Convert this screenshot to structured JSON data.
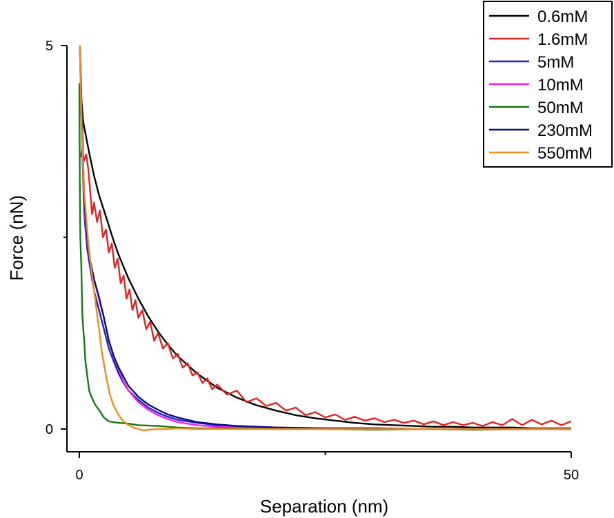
{
  "chart_data": {
    "type": "line",
    "title": "",
    "xlabel": "Separation (nm)",
    "ylabel": "Force (nN)",
    "xlim": [
      -0.5,
      50
    ],
    "ylim": [
      -0.3,
      5
    ],
    "x_ticks": [
      0,
      50
    ],
    "x_minor_ticks": [
      25
    ],
    "y_ticks": [
      0,
      5
    ],
    "y_minor_ticks": [
      2.5
    ],
    "grid": false,
    "legend_position": "top-right",
    "series": [
      {
        "name": "0.6mM",
        "color": "#000000",
        "x": [
          0.05,
          0.2,
          0.4,
          0.7,
          1,
          1.5,
          2,
          2.5,
          3,
          3.5,
          4,
          5,
          6,
          7,
          8,
          9,
          10,
          12,
          14,
          16,
          18,
          20,
          22,
          24,
          26,
          28,
          30,
          32,
          34,
          36,
          38,
          40,
          42,
          44,
          46,
          48,
          50
        ],
        "values": [
          5,
          4.3,
          4.0,
          3.8,
          3.6,
          3.3,
          3.05,
          2.85,
          2.65,
          2.45,
          2.27,
          1.96,
          1.7,
          1.47,
          1.27,
          1.1,
          0.95,
          0.72,
          0.54,
          0.41,
          0.31,
          0.24,
          0.18,
          0.14,
          0.11,
          0.08,
          0.06,
          0.05,
          0.04,
          0.03,
          0.03,
          0.02,
          0.02,
          0.02,
          0.01,
          0.01,
          0.01
        ]
      },
      {
        "name": "1.6mM",
        "color": "#e32222",
        "x": [
          0.05,
          0.15,
          0.3,
          0.5,
          0.7,
          0.9,
          1.1,
          1.3,
          1.5,
          1.8,
          2.1,
          2.4,
          2.7,
          3,
          3.3,
          3.6,
          3.9,
          4.2,
          4.5,
          4.8,
          5.1,
          5.4,
          5.7,
          6,
          6.4,
          6.8,
          7.2,
          7.6,
          8,
          8.5,
          9,
          9.5,
          10,
          10.5,
          11,
          11.5,
          12,
          12.5,
          13,
          13.5,
          14,
          15,
          16,
          17,
          18,
          19,
          20,
          21,
          22,
          23,
          24,
          25,
          26,
          27,
          28,
          29,
          30,
          31,
          32,
          33,
          34,
          35,
          36,
          37,
          38,
          39,
          40,
          41,
          42,
          43,
          44,
          45,
          46,
          47,
          48,
          49,
          50
        ],
        "values": [
          3.6,
          3.55,
          3.65,
          3.5,
          3.58,
          3.4,
          3.1,
          2.8,
          2.95,
          2.7,
          2.85,
          2.5,
          2.6,
          2.3,
          2.42,
          2.1,
          2.22,
          1.9,
          2.0,
          1.7,
          1.82,
          1.55,
          1.68,
          1.45,
          1.55,
          1.3,
          1.4,
          1.15,
          1.25,
          1.05,
          1.12,
          0.92,
          0.98,
          0.8,
          0.86,
          0.7,
          0.74,
          0.6,
          0.66,
          0.52,
          0.58,
          0.45,
          0.5,
          0.35,
          0.4,
          0.3,
          0.34,
          0.24,
          0.28,
          0.18,
          0.22,
          0.15,
          0.19,
          0.12,
          0.16,
          0.11,
          0.14,
          0.09,
          0.12,
          0.08,
          0.11,
          0.06,
          0.1,
          0.05,
          0.09,
          0.05,
          0.08,
          0.04,
          0.09,
          0.05,
          0.13,
          0.05,
          0.12,
          0.06,
          0.11,
          0.05,
          0.1
        ]
      },
      {
        "name": "5mM",
        "color": "#1f1fd0",
        "x": [
          0.05,
          0.15,
          0.3,
          0.5,
          0.8,
          1.1,
          1.5,
          2,
          2.5,
          3,
          3.5,
          4,
          4.5,
          5,
          6,
          7,
          8,
          9,
          10,
          12,
          14,
          16,
          18,
          20,
          25,
          30,
          35,
          40,
          45,
          50
        ],
        "values": [
          5,
          4.4,
          3.6,
          2.8,
          2.35,
          2.1,
          1.8,
          1.55,
          1.3,
          1.05,
          0.88,
          0.72,
          0.6,
          0.5,
          0.38,
          0.28,
          0.21,
          0.16,
          0.12,
          0.08,
          0.05,
          0.04,
          0.03,
          0.02,
          0.01,
          0.01,
          0.0,
          0.0,
          0.0,
          0.0
        ]
      },
      {
        "name": "10mM",
        "color": "#ee22ee",
        "x": [
          0.05,
          0.15,
          0.3,
          0.5,
          0.8,
          1.1,
          1.5,
          2,
          2.5,
          3,
          3.5,
          4,
          4.5,
          5,
          6,
          7,
          8,
          9,
          10,
          12,
          14,
          16,
          18,
          20,
          25,
          30,
          35,
          40,
          45,
          50
        ],
        "values": [
          5,
          4.5,
          3.7,
          2.9,
          2.45,
          2.2,
          1.95,
          1.7,
          1.45,
          1.15,
          0.95,
          0.78,
          0.62,
          0.5,
          0.35,
          0.25,
          0.18,
          0.13,
          0.09,
          0.05,
          0.03,
          0.02,
          0.01,
          0.01,
          0.0,
          0.0,
          0.0,
          0.0,
          0.0,
          0.0
        ]
      },
      {
        "name": "50mM",
        "color": "#157a15",
        "x": [
          0.0,
          0.05,
          0.1,
          0.2,
          0.3,
          0.4,
          0.5,
          0.6,
          0.8,
          1.0,
          1.3,
          1.6,
          2.0,
          2.5,
          3,
          4,
          5,
          6,
          8,
          10,
          12,
          15,
          20,
          25,
          30,
          35,
          40,
          45,
          50
        ],
        "values": [
          4.5,
          3.2,
          2.5,
          2.1,
          1.5,
          1.3,
          1.15,
          0.9,
          0.7,
          0.5,
          0.4,
          0.32,
          0.25,
          0.15,
          0.1,
          0.08,
          0.07,
          0.05,
          0.04,
          0.02,
          0.01,
          0.01,
          0.0,
          0.0,
          -0.01,
          0.0,
          -0.01,
          0.0,
          0.0
        ]
      },
      {
        "name": "230mM",
        "color": "#0a0a7a",
        "x": [
          0.05,
          0.15,
          0.3,
          0.5,
          0.8,
          1.1,
          1.5,
          2,
          2.5,
          3,
          3.5,
          4,
          4.5,
          5,
          6,
          7,
          8,
          9,
          10,
          12,
          14,
          16,
          18,
          20,
          25,
          30,
          35,
          40,
          45,
          50
        ],
        "values": [
          5,
          4.6,
          3.9,
          3.0,
          2.5,
          2.2,
          1.95,
          1.72,
          1.45,
          1.15,
          0.95,
          0.8,
          0.68,
          0.56,
          0.42,
          0.32,
          0.25,
          0.19,
          0.15,
          0.09,
          0.06,
          0.04,
          0.03,
          0.02,
          0.01,
          0.01,
          0.0,
          0.0,
          0.0,
          0.0
        ]
      },
      {
        "name": "550mM",
        "color": "#f08c1e",
        "x": [
          0.05,
          0.15,
          0.3,
          0.5,
          0.7,
          0.9,
          1.1,
          1.4,
          1.7,
          2.0,
          2.3,
          2.7,
          3.1,
          3.5,
          4,
          4.5,
          5,
          5.5,
          6,
          6.5,
          7,
          8,
          9,
          10,
          12,
          15,
          20,
          25,
          30,
          35,
          40,
          45,
          50
        ],
        "values": [
          5,
          4.4,
          3.7,
          3.1,
          2.75,
          2.45,
          2.2,
          1.9,
          1.6,
          1.3,
          1.0,
          0.7,
          0.45,
          0.3,
          0.18,
          0.1,
          0.05,
          0.02,
          0.0,
          -0.02,
          -0.01,
          0.0,
          0.0,
          0.01,
          0.0,
          0.0,
          0.0,
          0.0,
          0.0,
          0.0,
          0.0,
          0.0,
          0.0
        ]
      }
    ]
  }
}
